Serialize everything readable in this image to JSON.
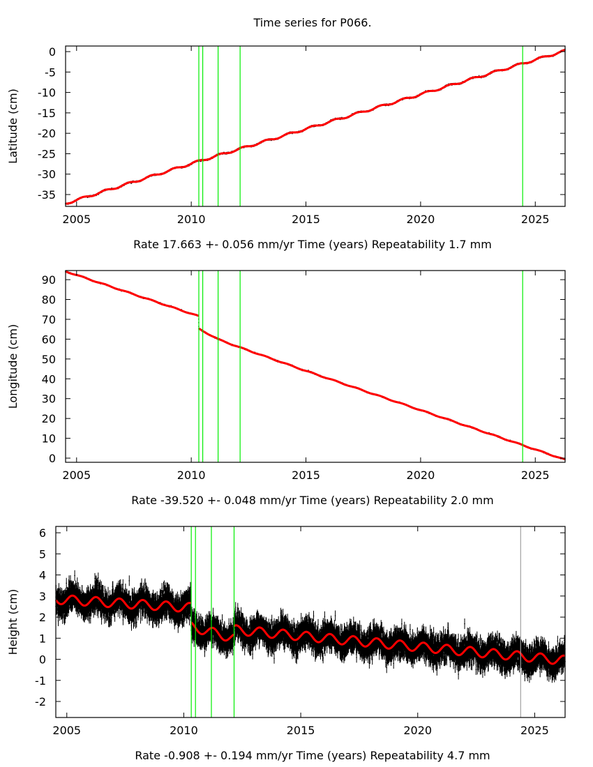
{
  "chart_data": {
    "type": "scatter",
    "title": "Time series for P066.",
    "colors": {
      "points": "#000000",
      "fit": "#ff0000",
      "event": "#00ee00",
      "event_alt": "#a0a0a0"
    },
    "panels": [
      {
        "ylabel": "Latitude (cm)",
        "xlabel": "Time (years)",
        "rate_text": "Rate 17.663 +- 0.056 mm/yr",
        "repeat_text": "Repeatability 1.7 mm",
        "xlim": [
          2004.52,
          2026.3
        ],
        "ylim": [
          -37.9,
          1.37
        ],
        "xticks": [
          2005,
          2010,
          2015,
          2020,
          2025
        ],
        "yticks": [
          0,
          -5,
          -10,
          -15,
          -20,
          -25,
          -30,
          -35
        ],
        "events": [
          2010.33,
          2010.5,
          2011.17,
          2012.13,
          2024.45
        ],
        "fit_anchors": [
          [
            2004.52,
            -37.2
          ],
          [
            2010.3,
            -26.9
          ],
          [
            2026.3,
            0.2
          ]
        ],
        "seasonal_amplitude": 0.25,
        "noise_sigma": 0.15
      },
      {
        "ylabel": "Longitude (cm)",
        "xlabel": "Time (years)",
        "rate_text": "Rate -39.520 +- 0.048 mm/yr",
        "repeat_text": "Repeatability 2.0 mm",
        "xlim": [
          2004.52,
          2026.3
        ],
        "ylim": [
          -2.1,
          94.6
        ],
        "xticks": [
          2005,
          2010,
          2015,
          2020,
          2025
        ],
        "yticks": [
          0,
          10,
          20,
          30,
          40,
          50,
          60,
          70,
          80,
          90
        ],
        "events": [
          2010.33,
          2010.5,
          2011.17,
          2012.13,
          2024.45
        ],
        "fit_anchors": [
          [
            2004.52,
            94.2
          ],
          [
            2010.32,
            71.6
          ],
          [
            2010.33,
            65.2
          ],
          [
            2011.2,
            59.8
          ],
          [
            2012.2,
            55.5
          ],
          [
            2015,
            44
          ],
          [
            2020,
            24.2
          ],
          [
            2026.3,
            -0.8
          ]
        ],
        "seasonal_amplitude": 0.2,
        "noise_sigma": 0.25
      },
      {
        "ylabel": "Height (cm)",
        "xlabel": "Time (years)",
        "rate_text": "Rate -0.908 +- 0.194 mm/yr",
        "repeat_text": "Repeatability 4.7 mm",
        "xlim": [
          2004.53,
          2026.3
        ],
        "ylim": [
          -2.76,
          6.3
        ],
        "xticks": [
          2005,
          2010,
          2015,
          2020,
          2025
        ],
        "yticks": [
          6,
          5,
          4,
          3,
          2,
          1,
          0,
          -1,
          -2
        ],
        "events": [
          2010.32,
          2010.5,
          2011.18,
          2012.15,
          2024.4
        ],
        "fit_anchors": [
          [
            2004.53,
            2.85
          ],
          [
            2010.3,
            2.45
          ],
          [
            2010.31,
            1.55
          ],
          [
            2012.14,
            1.0
          ],
          [
            2012.15,
            1.4
          ],
          [
            2026.3,
            -0.05
          ]
        ],
        "seasonal_amplitude": 0.22,
        "noise_sigma": 0.5
      }
    ]
  }
}
